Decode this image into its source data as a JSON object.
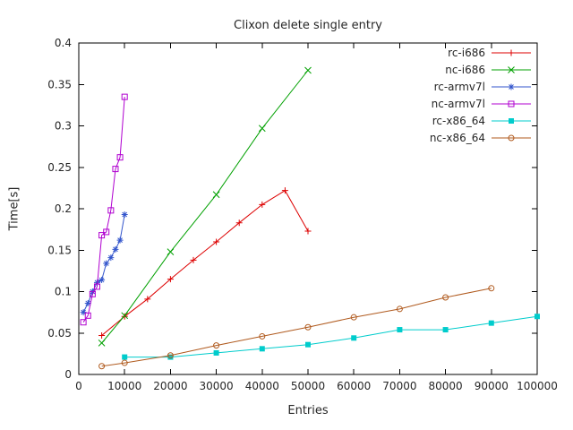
{
  "chart_data": {
    "type": "line",
    "title": "Clixon delete single entry",
    "xlabel": "Entries",
    "ylabel": "Time[s]",
    "xlim": [
      0,
      100000
    ],
    "ylim": [
      0,
      0.4
    ],
    "grid": false,
    "legend_position": "top-right-inside",
    "xtick_values": [
      0,
      10000,
      20000,
      30000,
      40000,
      50000,
      60000,
      70000,
      80000,
      90000,
      100000
    ],
    "xtick_labels": [
      "0",
      "10000",
      "20000",
      "30000",
      "40000",
      "50000",
      "60000",
      "70000",
      "80000",
      "90000",
      "100000"
    ],
    "ytick_values": [
      0,
      0.05,
      0.1,
      0.15,
      0.2,
      0.25,
      0.3,
      0.35,
      0.4
    ],
    "ytick_labels": [
      "0",
      "0.05",
      "0.1",
      "0.15",
      "0.2",
      "0.25",
      "0.3",
      "0.35",
      "0.4"
    ],
    "axis_color": "#000000",
    "text_color": "#262626",
    "series": [
      {
        "name": "rc-i686",
        "color": "#dd0000",
        "marker": "plus",
        "points": [
          [
            5000,
            0.047
          ],
          [
            10000,
            0.07
          ],
          [
            15000,
            0.091
          ],
          [
            20000,
            0.115
          ],
          [
            25000,
            0.138
          ],
          [
            30000,
            0.16
          ],
          [
            35000,
            0.183
          ],
          [
            40000,
            0.205
          ],
          [
            45000,
            0.222
          ],
          [
            50000,
            0.173
          ]
        ]
      },
      {
        "name": "nc-i686",
        "color": "#00a000",
        "marker": "cross",
        "points": [
          [
            5000,
            0.038
          ],
          [
            10000,
            0.071
          ],
          [
            20000,
            0.148
          ],
          [
            30000,
            0.217
          ],
          [
            40000,
            0.297
          ],
          [
            50000,
            0.367
          ]
        ]
      },
      {
        "name": "rc-armv7l",
        "color": "#3355cc",
        "marker": "asterisk",
        "points": [
          [
            1000,
            0.075
          ],
          [
            2000,
            0.086
          ],
          [
            3000,
            0.1
          ],
          [
            4000,
            0.111
          ],
          [
            5000,
            0.114
          ],
          [
            6000,
            0.134
          ],
          [
            7000,
            0.141
          ],
          [
            8000,
            0.151
          ],
          [
            9000,
            0.162
          ],
          [
            10000,
            0.193
          ]
        ]
      },
      {
        "name": "nc-armv7l",
        "color": "#b000d0",
        "marker": "square-open",
        "points": [
          [
            1000,
            0.063
          ],
          [
            2000,
            0.071
          ],
          [
            3000,
            0.097
          ],
          [
            4000,
            0.106
          ],
          [
            5000,
            0.168
          ],
          [
            6000,
            0.172
          ],
          [
            7000,
            0.198
          ],
          [
            8000,
            0.248
          ],
          [
            9000,
            0.262
          ],
          [
            10000,
            0.335
          ]
        ]
      },
      {
        "name": "rc-x86_64",
        "color": "#00cccc",
        "marker": "square-filled",
        "points": [
          [
            10000,
            0.021
          ],
          [
            20000,
            0.021
          ],
          [
            30000,
            0.026
          ],
          [
            40000,
            0.031
          ],
          [
            50000,
            0.036
          ],
          [
            60000,
            0.044
          ],
          [
            70000,
            0.054
          ],
          [
            80000,
            0.054
          ],
          [
            90000,
            0.062
          ],
          [
            100000,
            0.07
          ]
        ]
      },
      {
        "name": "nc-x86_64",
        "color": "#b05a1e",
        "marker": "circle-open",
        "points": [
          [
            5000,
            0.01
          ],
          [
            10000,
            0.014
          ],
          [
            20000,
            0.023
          ],
          [
            30000,
            0.035
          ],
          [
            40000,
            0.046
          ],
          [
            50000,
            0.057
          ],
          [
            60000,
            0.069
          ],
          [
            70000,
            0.079
          ],
          [
            80000,
            0.093
          ],
          [
            90000,
            0.104
          ]
        ]
      }
    ]
  }
}
